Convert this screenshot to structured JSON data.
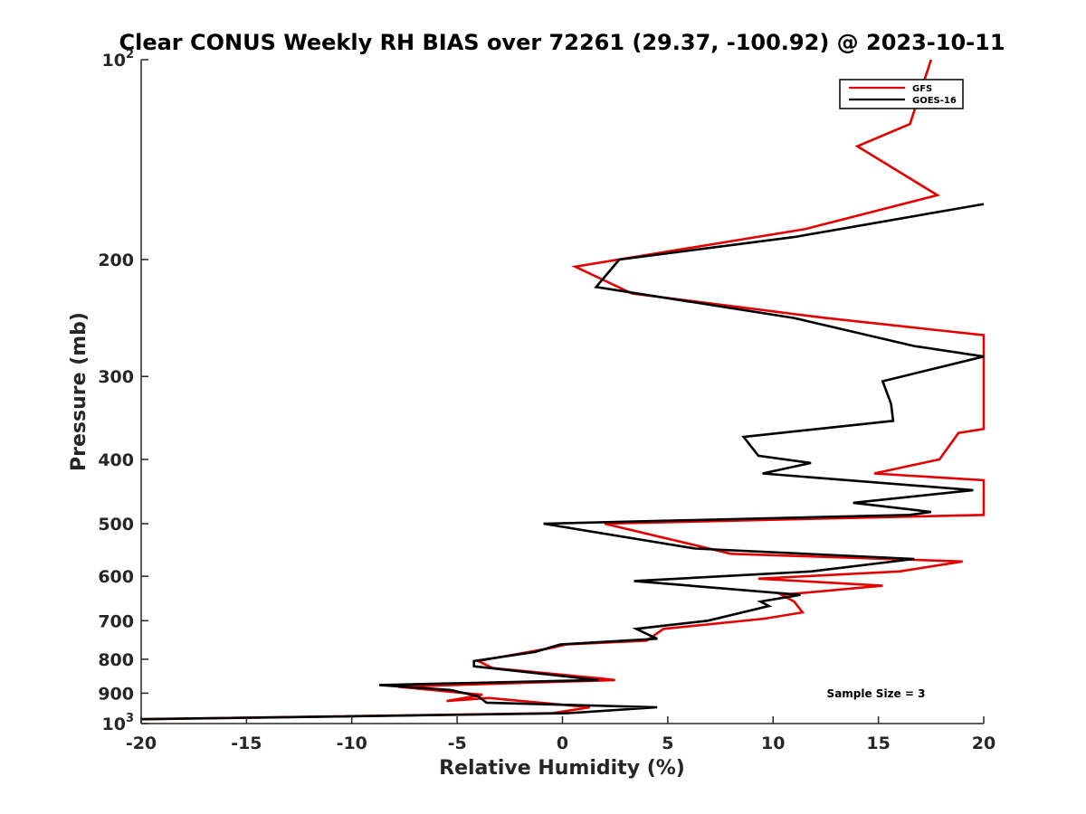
{
  "chart_data": {
    "type": "line",
    "title": "Clear CONUS Weekly RH BIAS over 72261 (29.37, -100.92) @ 2023-10-11",
    "xlabel": "Relative Humidity (%)",
    "ylabel": "Pressure (mb)",
    "xlim": [
      -20,
      20
    ],
    "ylim": [
      100,
      1000
    ],
    "y_scale": "log",
    "y_reversed": true,
    "grid": false,
    "legend_position": "top-right",
    "x_ticks": [
      "-20",
      "-15",
      "-10",
      "-5",
      "0",
      "5",
      "10",
      "15",
      "20"
    ],
    "y_ticks": [
      {
        "value": 100,
        "base": "10",
        "exp": "2"
      },
      {
        "value": 200,
        "label": "200"
      },
      {
        "value": 300,
        "label": "300"
      },
      {
        "value": 400,
        "label": "400"
      },
      {
        "value": 500,
        "label": "500"
      },
      {
        "value": 600,
        "label": "600"
      },
      {
        "value": 700,
        "label": "700"
      },
      {
        "value": 800,
        "label": "800"
      },
      {
        "value": 900,
        "label": "900"
      },
      {
        "value": 1000,
        "base": "10",
        "exp": "3"
      }
    ],
    "annotation": "Sample Size = 3",
    "series": [
      {
        "name": "GFS",
        "color": "#e50000",
        "points": [
          [
            17.5,
            100
          ],
          [
            16.5,
            125
          ],
          [
            14,
            135
          ],
          [
            17.8,
            160
          ],
          [
            11.5,
            180
          ],
          [
            0.6,
            205
          ],
          [
            3.3,
            225
          ],
          [
            12.5,
            245
          ],
          [
            20,
            260
          ],
          [
            20,
            360
          ],
          [
            18.8,
            365
          ],
          [
            18.4,
            380
          ],
          [
            17.9,
            400
          ],
          [
            14.8,
            420
          ],
          [
            20,
            430
          ],
          [
            20,
            485
          ],
          [
            2,
            500
          ],
          [
            8,
            555
          ],
          [
            19,
            570
          ],
          [
            16,
            590
          ],
          [
            9.3,
            605
          ],
          [
            15.2,
            620
          ],
          [
            10.4,
            640
          ],
          [
            11,
            655
          ],
          [
            11.4,
            680
          ],
          [
            9.6,
            695
          ],
          [
            4.8,
            720
          ],
          [
            4,
            750
          ],
          [
            0.2,
            760
          ],
          [
            -0.6,
            770
          ],
          [
            -4,
            805
          ],
          [
            -3.3,
            825
          ],
          [
            1.8,
            855
          ],
          [
            2.5,
            860
          ],
          [
            -7.8,
            880
          ],
          [
            -3.8,
            905
          ],
          [
            -5.5,
            925
          ],
          [
            -3.5,
            915
          ],
          [
            1.3,
            945
          ],
          [
            -0.5,
            965
          ],
          [
            -20,
            985
          ]
        ]
      },
      {
        "name": "GOES-16",
        "color": "#000000",
        "points": [
          [
            20,
            165
          ],
          [
            11,
            185
          ],
          [
            2.7,
            200
          ],
          [
            1.6,
            220
          ],
          [
            11,
            245
          ],
          [
            16.7,
            270
          ],
          [
            20,
            280
          ],
          [
            15.2,
            305
          ],
          [
            15.6,
            330
          ],
          [
            15.7,
            350
          ],
          [
            8.6,
            370
          ],
          [
            9.3,
            395
          ],
          [
            11.8,
            405
          ],
          [
            9.5,
            420
          ],
          [
            19.5,
            445
          ],
          [
            13.8,
            465
          ],
          [
            17.5,
            480
          ],
          [
            16.5,
            485
          ],
          [
            -0.9,
            500
          ],
          [
            6.3,
            545
          ],
          [
            16.7,
            565
          ],
          [
            11.8,
            590
          ],
          [
            3.4,
            610
          ],
          [
            11.3,
            640
          ],
          [
            9.4,
            655
          ],
          [
            9.8,
            665
          ],
          [
            6.9,
            700
          ],
          [
            3.5,
            720
          ],
          [
            4.1,
            735
          ],
          [
            4.5,
            745
          ],
          [
            -0.1,
            760
          ],
          [
            -1.3,
            780
          ],
          [
            -4.2,
            805
          ],
          [
            -4.2,
            820
          ],
          [
            1.7,
            860
          ],
          [
            -8.7,
            875
          ],
          [
            -5.3,
            890
          ],
          [
            -4.0,
            910
          ],
          [
            -3.6,
            930
          ],
          [
            4.5,
            945
          ],
          [
            0.2,
            965
          ],
          [
            -20,
            985
          ]
        ]
      }
    ]
  }
}
